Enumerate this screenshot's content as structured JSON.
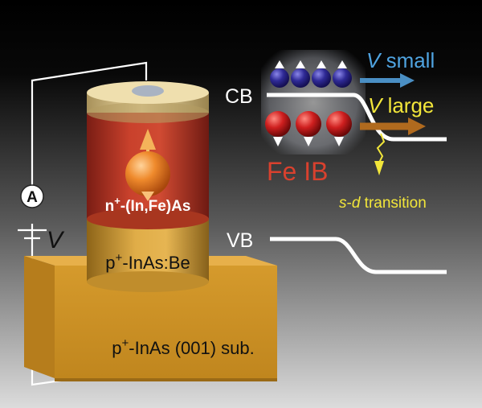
{
  "labels": {
    "cb": "CB",
    "vb": "VB",
    "v_small_v": "V",
    "v_small_rest": " small",
    "v_large_v": "V",
    "v_large_rest": " large",
    "fe_ib": "Fe IB",
    "sd_s": "s",
    "sd_dash": "-",
    "sd_d": "d",
    "sd_rest": " transition",
    "ammeter": "A",
    "voltage": "V",
    "layer_top_n": "n",
    "layer_top_sup": "+",
    "layer_top_rest": "-(In,Fe)As",
    "layer_mid_p": "p",
    "layer_mid_sup": "+",
    "layer_mid_rest": "-InAs:Be",
    "layer_sub_p": "p",
    "layer_sub_sup": "+",
    "layer_sub_rest": "-InAs (001) sub."
  },
  "colors": {
    "background_top": "#000000",
    "background_bottom": "#d9d9d9",
    "n_layer": "#c23a2a",
    "p_layer": "#d9a43a",
    "substrate": "#d49a2e",
    "contact": "#e3cf95",
    "electron_blue": "#2d2a8a",
    "electron_red": "#c41c1c",
    "arrow_small": "#4a8fc4",
    "arrow_large": "#b06a1e",
    "label_small": "#4fa3e0",
    "label_large": "#f2e63a",
    "fe_ib_text": "#d9412e",
    "sd_text": "#f2e63a"
  }
}
